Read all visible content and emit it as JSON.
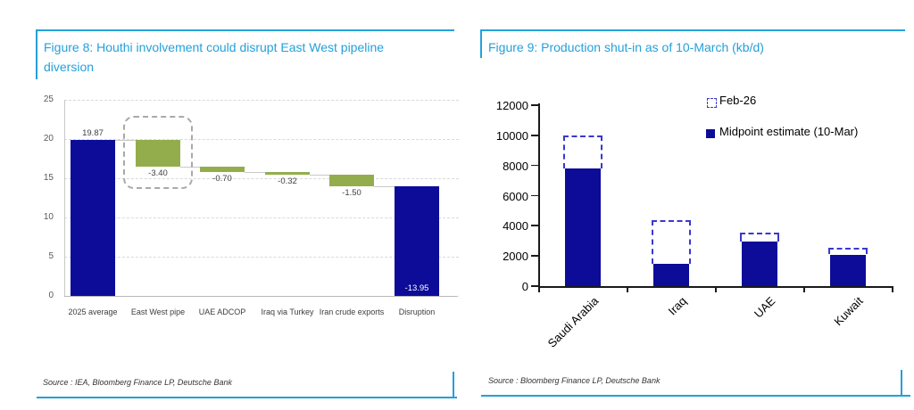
{
  "figure8": {
    "source": "Source : IEA, Bloomberg Finance LP, Deutsche Bank"
  },
  "figure9": {
    "source": "Source : Bloomberg Finance LP, Deutsche Bank"
  },
  "chart_data": [
    {
      "type": "bar",
      "subtype": "waterfall",
      "title": "Figure 8: Houthi involvement could disrupt East West pipeline diversion",
      "categories": [
        "2025 average",
        "East West pipe",
        "UAE ADCOP",
        "Iraq via Turkey",
        "Iran crude exports",
        "Disruption"
      ],
      "values": [
        19.87,
        -3.4,
        -0.7,
        -0.32,
        -1.5,
        -13.95
      ],
      "labels": [
        "19.87",
        "-3.40",
        "-0.70",
        "-0.32",
        "-1.50",
        "-13.95"
      ],
      "final_total": 13.95,
      "xlabel": "",
      "ylabel": "",
      "ylim": [
        0,
        25
      ],
      "ytick_step": 5,
      "grid": "dashed-horizontal",
      "highlight_index": 1,
      "colors": {
        "start_end_bar": "#0c0c99",
        "decrease_bar": "#94ad4c",
        "last_label_text": "#ffffff"
      }
    },
    {
      "type": "bar",
      "subtype": "grouped-overlay",
      "title": "Figure 9: Production shut-in as of 10-March (kb/d)",
      "categories": [
        "Saudi Arabia",
        "Iraq",
        "UAE",
        "Kuwait"
      ],
      "series": [
        {
          "name": "Feb-26",
          "style": "dashed-outline",
          "color": "#3939cc",
          "values": [
            10000,
            4350,
            3550,
            2550
          ]
        },
        {
          "name": "Midpoint estimate (10-Mar)",
          "style": "solid",
          "color": "#0c0c99",
          "values": [
            7800,
            1450,
            2950,
            2100
          ]
        }
      ],
      "xlabel": "",
      "ylabel": "",
      "ylim": [
        0,
        12000
      ],
      "ytick_step": 2000,
      "grid": "off",
      "legend_position": "top-right"
    }
  ]
}
